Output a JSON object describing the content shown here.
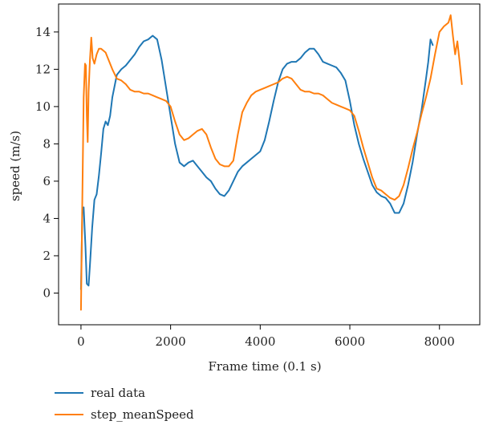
{
  "chart_data": {
    "type": "line",
    "title": "",
    "xlabel": "Frame time (0.1 s)",
    "ylabel": "speed (m/s)",
    "xlim": [
      -500,
      8900
    ],
    "ylim": [
      -1.7,
      15.5
    ],
    "xticks": [
      0,
      2000,
      4000,
      6000,
      8000
    ],
    "yticks": [
      0,
      2,
      4,
      6,
      8,
      10,
      12,
      14
    ],
    "grid": false,
    "legend_position": "bottom-left, below plot",
    "series": [
      {
        "name": "real data",
        "color": "#1f77b4",
        "x": [
          0,
          30,
          60,
          100,
          130,
          170,
          200,
          250,
          300,
          350,
          400,
          450,
          500,
          550,
          600,
          650,
          700,
          800,
          900,
          1000,
          1100,
          1200,
          1300,
          1400,
          1500,
          1600,
          1700,
          1800,
          1900,
          2000,
          2100,
          2200,
          2300,
          2400,
          2500,
          2600,
          2700,
          2800,
          2900,
          3000,
          3100,
          3200,
          3300,
          3400,
          3500,
          3600,
          3700,
          3800,
          3900,
          4000,
          4100,
          4200,
          4300,
          4400,
          4500,
          4600,
          4700,
          4800,
          4900,
          5000,
          5100,
          5200,
          5300,
          5400,
          5500,
          5600,
          5700,
          5800,
          5900,
          6000,
          6100,
          6200,
          6300,
          6400,
          6500,
          6600,
          6700,
          6800,
          6900,
          7000,
          7100,
          7200,
          7300,
          7400,
          7500,
          7600,
          7700,
          7750,
          7800,
          7850
        ],
        "y": [
          0.2,
          4.3,
          4.6,
          2.5,
          0.5,
          0.4,
          1.5,
          3.5,
          5.0,
          5.3,
          6.3,
          7.5,
          8.8,
          9.2,
          9.0,
          9.5,
          10.5,
          11.7,
          12.0,
          12.2,
          12.5,
          12.8,
          13.2,
          13.5,
          13.6,
          13.8,
          13.6,
          12.5,
          11.0,
          9.5,
          8.0,
          7.0,
          6.8,
          7.0,
          7.1,
          6.8,
          6.5,
          6.2,
          6.0,
          5.6,
          5.3,
          5.2,
          5.5,
          6.0,
          6.5,
          6.8,
          7.0,
          7.2,
          7.4,
          7.6,
          8.2,
          9.2,
          10.3,
          11.3,
          12.0,
          12.3,
          12.4,
          12.4,
          12.6,
          12.9,
          13.1,
          13.1,
          12.8,
          12.4,
          12.3,
          12.2,
          12.1,
          11.8,
          11.4,
          10.3,
          9.0,
          8.0,
          7.2,
          6.5,
          5.8,
          5.4,
          5.2,
          5.1,
          4.8,
          4.3,
          4.3,
          4.8,
          5.8,
          7.0,
          8.5,
          9.8,
          11.5,
          12.4,
          13.6,
          13.3
        ]
      },
      {
        "name": "step_meanSpeed",
        "color": "#ff7f0e",
        "x": [
          0,
          30,
          60,
          90,
          110,
          130,
          150,
          170,
          200,
          230,
          260,
          300,
          350,
          400,
          450,
          500,
          550,
          600,
          700,
          800,
          900,
          1000,
          1100,
          1200,
          1300,
          1400,
          1500,
          1600,
          1700,
          1800,
          1900,
          2000,
          2100,
          2200,
          2300,
          2400,
          2500,
          2600,
          2700,
          2800,
          2900,
          3000,
          3100,
          3200,
          3300,
          3400,
          3500,
          3600,
          3700,
          3800,
          3900,
          4000,
          4100,
          4200,
          4300,
          4400,
          4500,
          4600,
          4700,
          4800,
          4900,
          5000,
          5100,
          5200,
          5300,
          5400,
          5500,
          5600,
          5700,
          5800,
          5900,
          6000,
          6100,
          6200,
          6300,
          6400,
          6500,
          6600,
          6700,
          6800,
          6900,
          7000,
          7100,
          7200,
          7300,
          7400,
          7500,
          7600,
          7700,
          7800,
          7900,
          8000,
          8100,
          8200,
          8250,
          8300,
          8350,
          8400,
          8450,
          8500
        ],
        "y": [
          -0.9,
          5.0,
          10.5,
          12.3,
          12.2,
          9.5,
          8.1,
          10.8,
          12.5,
          13.7,
          12.6,
          12.3,
          12.8,
          13.1,
          13.1,
          13.0,
          12.9,
          12.6,
          12.0,
          11.5,
          11.4,
          11.2,
          10.9,
          10.8,
          10.8,
          10.7,
          10.7,
          10.6,
          10.5,
          10.4,
          10.3,
          10.0,
          9.2,
          8.5,
          8.2,
          8.3,
          8.5,
          8.7,
          8.8,
          8.5,
          7.8,
          7.2,
          6.9,
          6.8,
          6.8,
          7.1,
          8.5,
          9.7,
          10.2,
          10.6,
          10.8,
          10.9,
          11.0,
          11.1,
          11.2,
          11.3,
          11.5,
          11.6,
          11.5,
          11.2,
          10.9,
          10.8,
          10.8,
          10.7,
          10.7,
          10.6,
          10.4,
          10.2,
          10.1,
          10.0,
          9.9,
          9.8,
          9.5,
          8.7,
          7.8,
          7.0,
          6.2,
          5.6,
          5.5,
          5.3,
          5.1,
          5.0,
          5.2,
          5.8,
          6.7,
          7.7,
          8.6,
          9.6,
          10.5,
          11.5,
          12.8,
          14.0,
          14.3,
          14.5,
          14.9,
          13.8,
          12.8,
          13.5,
          12.4,
          11.2
        ]
      }
    ]
  }
}
